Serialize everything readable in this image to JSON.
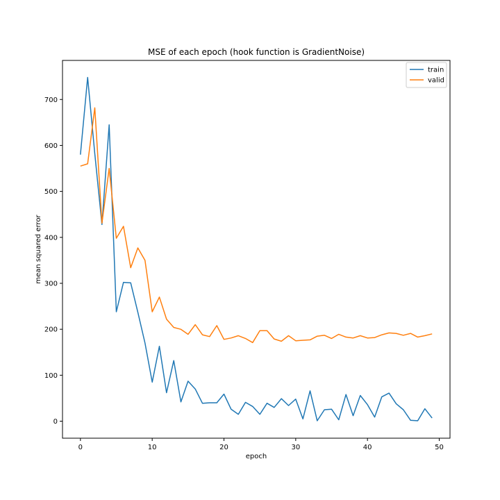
{
  "chart_data": {
    "type": "line",
    "title": "MSE of each epoch (hook function is GradientNoise)",
    "xlabel": "epoch",
    "ylabel": "mean squared error",
    "xlim": [
      -2.5,
      51.5
    ],
    "ylim": [
      -37,
      785
    ],
    "xticks": [
      0,
      10,
      20,
      30,
      40,
      50
    ],
    "yticks": [
      0,
      100,
      200,
      300,
      400,
      500,
      600,
      700
    ],
    "grid": false,
    "legend_position": "top-right",
    "x": [
      0,
      1,
      2,
      3,
      4,
      5,
      6,
      7,
      8,
      9,
      10,
      11,
      12,
      13,
      14,
      15,
      16,
      17,
      18,
      19,
      20,
      21,
      22,
      23,
      24,
      25,
      26,
      27,
      28,
      29,
      30,
      31,
      32,
      33,
      34,
      35,
      36,
      37,
      38,
      39,
      40,
      41,
      42,
      43,
      44,
      45,
      46,
      47,
      48,
      49
    ],
    "series": [
      {
        "name": "train",
        "color": "#1f77b4",
        "values": [
          580,
          748,
          582,
          428,
          645,
          238,
          302,
          301,
          237,
          170,
          85,
          163,
          62,
          132,
          42,
          87,
          70,
          39,
          40,
          40,
          59,
          26,
          15,
          41,
          32,
          15,
          39,
          30,
          49,
          34,
          48,
          5,
          66,
          1,
          25,
          26,
          3,
          58,
          12,
          56,
          36,
          9,
          53,
          61,
          38,
          25,
          2,
          1,
          27,
          7
        ]
      },
      {
        "name": "valid",
        "color": "#ff7f0e",
        "values": [
          555,
          560,
          682,
          431,
          550,
          398,
          424,
          334,
          377,
          350,
          238,
          270,
          222,
          204,
          200,
          189,
          210,
          188,
          184,
          208,
          178,
          181,
          186,
          180,
          171,
          197,
          197,
          179,
          174,
          186,
          175,
          176,
          177,
          185,
          187,
          180,
          189,
          183,
          181,
          186,
          181,
          182,
          188,
          192,
          191,
          187,
          191,
          183,
          186,
          190
        ]
      }
    ]
  }
}
